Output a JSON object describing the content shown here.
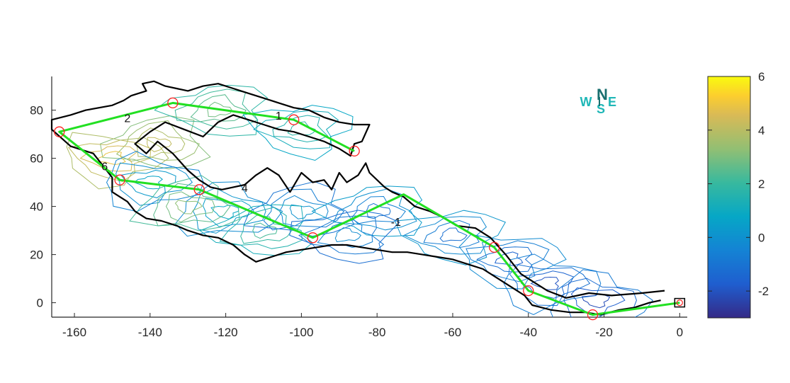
{
  "chart_data": {
    "type": "contour",
    "title": "",
    "xlabel": "",
    "ylabel": "",
    "xlim": [
      -166,
      2
    ],
    "ylim": [
      -6,
      94
    ],
    "x_ticks": [
      "-160",
      "-140",
      "-120",
      "-100",
      "-80",
      "-60",
      "-40",
      "-20",
      "0"
    ],
    "x_tick_values": [
      -160,
      -140,
      -120,
      -100,
      -80,
      -60,
      -40,
      -20,
      0
    ],
    "y_ticks": [
      "0",
      "20",
      "40",
      "60",
      "80"
    ],
    "y_tick_values": [
      0,
      20,
      40,
      60,
      80
    ],
    "colorbar": {
      "colormap": "parula",
      "range": [
        -3,
        6
      ],
      "ticks": [
        "-2",
        "0",
        "2",
        "4",
        "6"
      ],
      "tick_values": [
        -2,
        0,
        2,
        4,
        6
      ]
    },
    "compass": {
      "north": "N",
      "south": "S",
      "west": "W",
      "east": "E",
      "color": "#1fb7b7"
    },
    "route_color": "#22e022",
    "boundary_color": "#000000",
    "waypoint_color": "#ff2020",
    "route": [
      [
        0,
        0
      ],
      [
        -23,
        -5
      ],
      [
        -40,
        5
      ],
      [
        -49,
        23
      ],
      [
        -73,
        45
      ],
      [
        -97,
        27
      ],
      [
        -127,
        47
      ],
      [
        -148,
        51
      ],
      [
        -164,
        71
      ],
      [
        -134,
        83
      ],
      [
        -102,
        76
      ],
      [
        -86,
        63
      ]
    ],
    "waypoints": [
      [
        -23,
        -5
      ],
      [
        -40,
        5
      ],
      [
        -49,
        23
      ],
      [
        -97,
        27
      ],
      [
        -127,
        47
      ],
      [
        -148,
        51
      ],
      [
        -164,
        71
      ],
      [
        -134,
        83
      ],
      [
        -102,
        76
      ],
      [
        -86,
        63
      ]
    ],
    "start_marker": [
      0,
      0
    ],
    "boundary_outer": [
      [
        -4,
        5
      ],
      [
        -10,
        4
      ],
      [
        -18,
        3
      ],
      [
        -24,
        4
      ],
      [
        -30,
        2
      ],
      [
        -35,
        5
      ],
      [
        -38,
        8
      ],
      [
        -42,
        12
      ],
      [
        -46,
        20
      ],
      [
        -50,
        27
      ],
      [
        -54,
        31
      ],
      [
        -59,
        32
      ],
      [
        -62,
        35
      ],
      [
        -66,
        38
      ],
      [
        -70,
        40
      ],
      [
        -73,
        44
      ],
      [
        -76,
        46
      ],
      [
        -78,
        48
      ],
      [
        -80,
        51
      ],
      [
        -82,
        54
      ],
      [
        -83,
        58
      ],
      [
        -85,
        53
      ],
      [
        -88,
        50
      ],
      [
        -90,
        54
      ],
      [
        -92,
        47
      ],
      [
        -94,
        51
      ],
      [
        -97,
        50
      ],
      [
        -100,
        54
      ],
      [
        -103,
        46
      ],
      [
        -106,
        53
      ],
      [
        -109,
        56
      ],
      [
        -112,
        53
      ],
      [
        -115,
        49
      ],
      [
        -118,
        48
      ],
      [
        -121,
        47
      ],
      [
        -124,
        48
      ],
      [
        -127,
        51
      ],
      [
        -130,
        55
      ],
      [
        -134,
        62
      ],
      [
        -138,
        67
      ],
      [
        -141,
        62
      ],
      [
        -144,
        66
      ],
      [
        -140,
        71
      ],
      [
        -136,
        75
      ],
      [
        -131,
        72
      ],
      [
        -126,
        69
      ],
      [
        -122,
        75
      ],
      [
        -118,
        78
      ],
      [
        -114,
        76
      ],
      [
        -110,
        74
      ],
      [
        -106,
        72
      ],
      [
        -102,
        71
      ],
      [
        -98,
        69
      ],
      [
        -94,
        67
      ],
      [
        -90,
        64
      ],
      [
        -87,
        61
      ],
      [
        -86,
        66
      ],
      [
        -84,
        67
      ],
      [
        -82,
        74
      ],
      [
        -86,
        74
      ],
      [
        -90,
        75
      ],
      [
        -94,
        77
      ],
      [
        -98,
        80
      ],
      [
        -102,
        81
      ],
      [
        -106,
        83
      ],
      [
        -110,
        85
      ],
      [
        -114,
        87
      ],
      [
        -118,
        89
      ],
      [
        -122,
        91
      ],
      [
        -126,
        90
      ],
      [
        -130,
        88
      ],
      [
        -133,
        89
      ],
      [
        -136,
        90
      ],
      [
        -139,
        92
      ],
      [
        -142,
        91
      ],
      [
        -141,
        88
      ],
      [
        -145,
        86
      ],
      [
        -147,
        84
      ],
      [
        -150,
        82
      ],
      [
        -157,
        80
      ],
      [
        -161,
        78
      ],
      [
        -166,
        76
      ],
      [
        -166,
        72
      ],
      [
        -161,
        65
      ],
      [
        -155,
        62
      ],
      [
        -152,
        56
      ],
      [
        -150,
        52
      ],
      [
        -150,
        46
      ],
      [
        -146,
        42
      ],
      [
        -144,
        38
      ],
      [
        -141,
        35
      ],
      [
        -137,
        34
      ],
      [
        -133,
        32
      ],
      [
        -130,
        30
      ],
      [
        -126,
        28
      ],
      [
        -122,
        27
      ],
      [
        -118,
        24
      ],
      [
        -115,
        20
      ],
      [
        -112,
        17
      ],
      [
        -108,
        19
      ],
      [
        -104,
        21
      ],
      [
        -100,
        22
      ],
      [
        -96,
        23
      ],
      [
        -92,
        24
      ],
      [
        -88,
        24
      ],
      [
        -84,
        23
      ],
      [
        -80,
        22
      ],
      [
        -76,
        21
      ],
      [
        -72,
        21
      ],
      [
        -68,
        20
      ],
      [
        -64,
        19
      ],
      [
        -60,
        18
      ],
      [
        -56,
        16
      ],
      [
        -52,
        14
      ],
      [
        -48,
        10
      ],
      [
        -44,
        6
      ],
      [
        -41,
        3
      ],
      [
        -39,
        -1
      ],
      [
        -34,
        -3
      ],
      [
        -29,
        -4
      ],
      [
        -25,
        -4
      ],
      [
        -21,
        -5
      ],
      [
        -16,
        -3
      ],
      [
        -12,
        -2
      ],
      [
        -8,
        0
      ],
      [
        -5,
        1
      ]
    ],
    "contour_labels": [
      {
        "x": -146,
        "y": 75,
        "text": "2"
      },
      {
        "x": -106,
        "y": 76,
        "text": "1"
      },
      {
        "x": -152,
        "y": 55,
        "text": "6"
      },
      {
        "x": -115,
        "y": 46,
        "text": "4"
      },
      {
        "x": -75,
        "y": 32,
        "text": "-1"
      }
    ]
  }
}
